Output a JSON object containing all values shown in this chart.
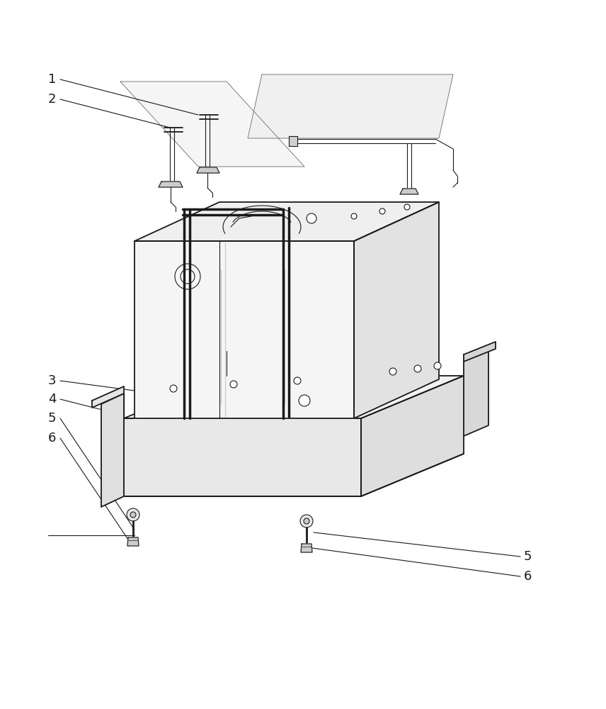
{
  "background_color": "#ffffff",
  "line_color": "#1a1a1a",
  "lw": 1.3,
  "tlw": 0.8,
  "fig_width": 8.56,
  "fig_height": 10.0,
  "label_fontsize": 13
}
